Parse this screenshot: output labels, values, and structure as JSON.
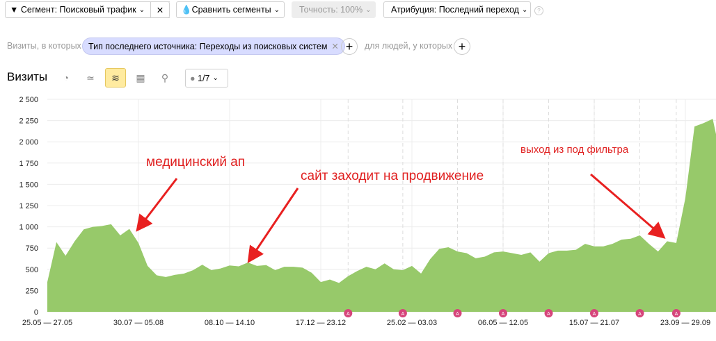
{
  "toolbar": {
    "segment_label": "Сегмент: Поисковый трафик",
    "compare_label": "Сравнить сегменты",
    "accuracy_label": "Точность: 100%",
    "attribution_label": "Атрибуция: Последний переход",
    "help": "?"
  },
  "filter": {
    "visits_label": "Визиты, в которых",
    "chip_label": "Тип последнего источника: Переходы из поисковых систем",
    "people_label": "для людей, у которых",
    "plus": "+"
  },
  "chart_header": {
    "title": "Визиты",
    "notes_label": "1/7",
    "active_view": "area-stacked"
  },
  "chart_data": {
    "type": "area",
    "color": "#97c96a",
    "annotation_color": "#d6457b",
    "ylim": [
      0,
      2500
    ],
    "yticks": [
      0,
      250,
      500,
      750,
      1000,
      1250,
      1500,
      1750,
      2000,
      2250,
      2500
    ],
    "ytick_labels": [
      "0",
      "250",
      "500",
      "750",
      "1 000",
      "1 250",
      "1 500",
      "1 750",
      "2 000",
      "2 250",
      "2 500"
    ],
    "xtick_labels": [
      "25.05 — 27.05",
      "30.07 — 05.08",
      "08.10 — 14.10",
      "17.12 — 23.12",
      "25.02 — 03.03",
      "06.05 — 12.05",
      "15.07 — 21.07",
      "23.09 — 29.09"
    ],
    "xtick_indices": [
      0,
      10,
      20,
      30,
      40,
      50,
      60,
      70
    ],
    "annotation_indices": [
      33,
      39,
      45,
      50,
      55,
      60,
      65,
      69
    ],
    "values": [
      350,
      820,
      660,
      830,
      970,
      1000,
      1010,
      1030,
      900,
      975,
      810,
      540,
      430,
      410,
      435,
      450,
      490,
      555,
      490,
      510,
      545,
      535,
      580,
      540,
      550,
      490,
      530,
      530,
      520,
      460,
      350,
      380,
      340,
      420,
      480,
      530,
      500,
      570,
      500,
      490,
      540,
      450,
      620,
      740,
      760,
      710,
      690,
      630,
      650,
      700,
      710,
      690,
      670,
      700,
      590,
      690,
      720,
      720,
      730,
      800,
      770,
      770,
      800,
      850,
      860,
      900,
      800,
      710,
      830,
      810,
      1340,
      2180,
      2220,
      2270,
      2090
    ],
    "annotations_text": [
      {
        "text": "медицинский ап",
        "color": "#e02020"
      },
      {
        "text": "сайт заходит на продвижение",
        "color": "#e02020"
      },
      {
        "text": "выход из под фильтра",
        "color": "#e02020"
      }
    ],
    "grid": true,
    "legend": "none"
  }
}
